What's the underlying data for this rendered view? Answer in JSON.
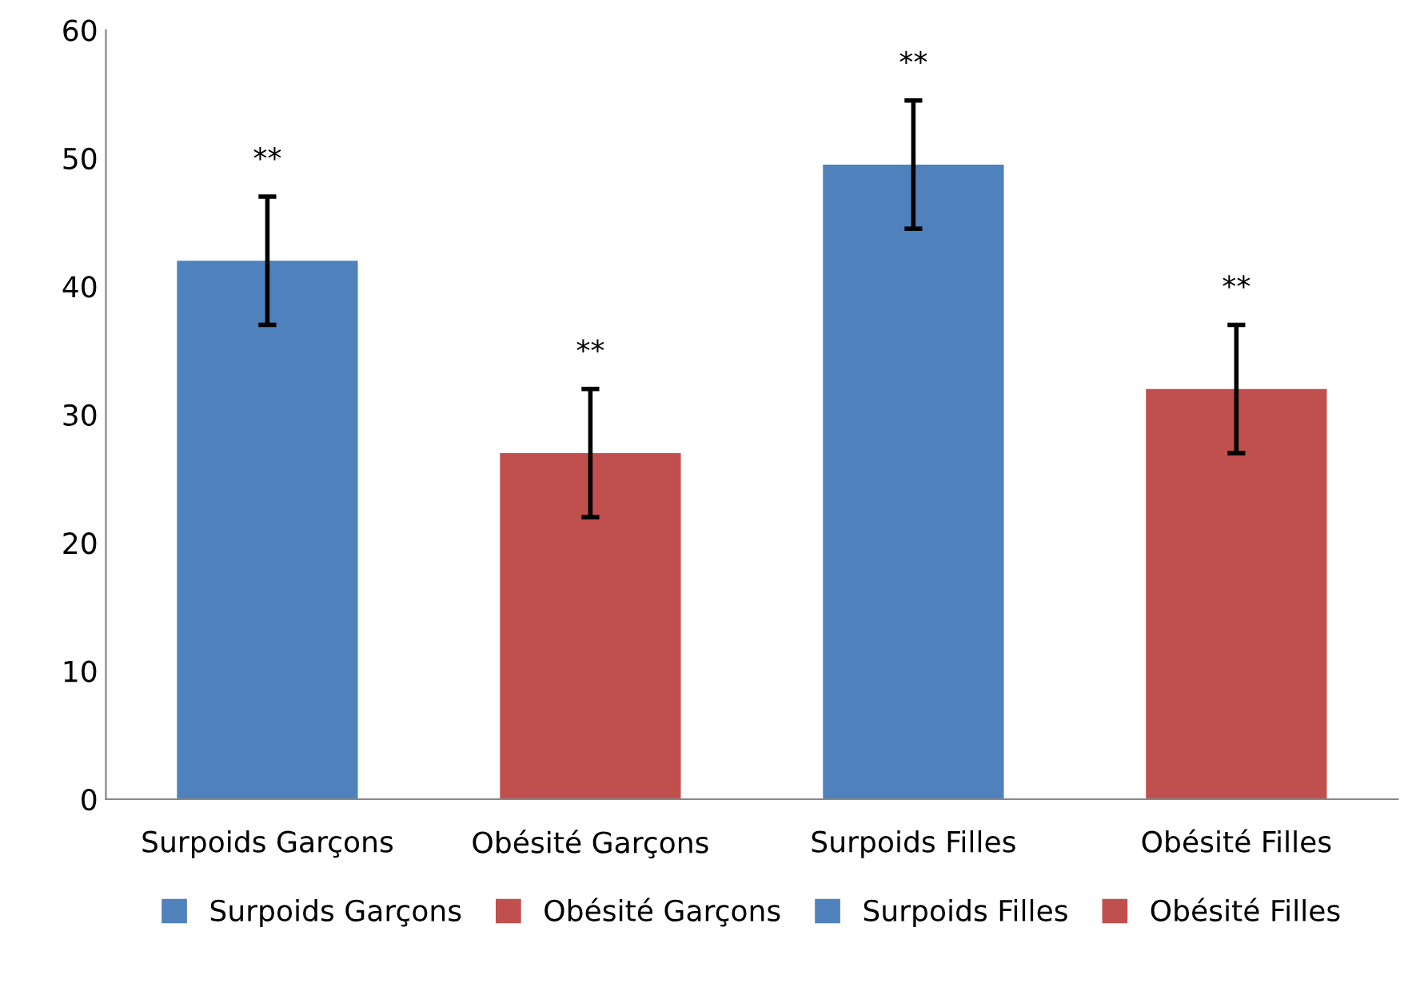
{
  "chart_data": {
    "type": "bar",
    "categories": [
      "Surpoids Garçons",
      "Obésité Garçons",
      "Surpoids Filles",
      "Obésité Filles"
    ],
    "series": [
      {
        "name": "Surpoids Garçons",
        "color": "#4f81bd",
        "values": [
          42,
          null,
          null,
          null
        ],
        "errors": [
          5,
          null,
          null,
          null
        ]
      },
      {
        "name": "Obésité Garçons",
        "color": "#c0504d",
        "values": [
          null,
          27,
          null,
          null
        ],
        "errors": [
          null,
          5,
          null,
          null
        ]
      },
      {
        "name": "Surpoids Filles",
        "color": "#4f81bd",
        "values": [
          null,
          null,
          49.5,
          null
        ],
        "errors": [
          null,
          null,
          5,
          null
        ]
      },
      {
        "name": "Obésité Filles",
        "color": "#c0504d",
        "values": [
          null,
          null,
          null,
          32
        ],
        "errors": [
          null,
          null,
          null,
          5
        ]
      }
    ],
    "annotations": [
      "**",
      "**",
      "**",
      "**"
    ],
    "ylim": [
      0,
      60
    ],
    "yticks": [
      0,
      10,
      20,
      30,
      40,
      50,
      60
    ],
    "grid": false,
    "legend": "bottom"
  }
}
